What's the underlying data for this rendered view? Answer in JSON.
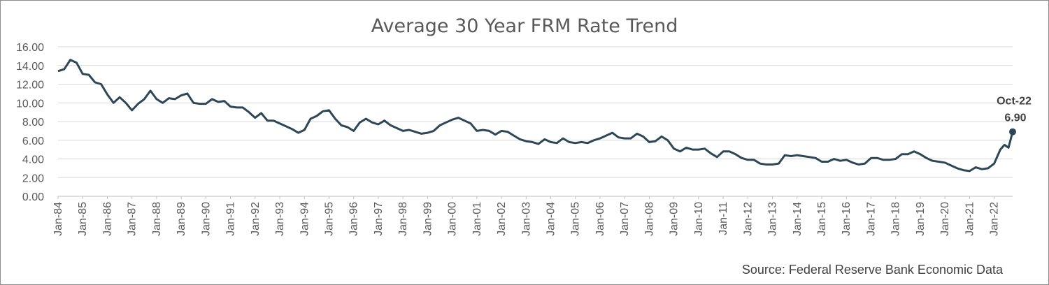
{
  "chart_data": {
    "type": "line",
    "title": "Average 30 Year FRM Rate Trend",
    "xlabel": "",
    "ylabel": "",
    "ylim": [
      0,
      16
    ],
    "y_ticks": [
      "0.00",
      "2.00",
      "4.00",
      "6.00",
      "8.00",
      "10.00",
      "12.00",
      "14.00",
      "16.00"
    ],
    "x_ticks": [
      "Jan-84",
      "Jan-85",
      "Jan-86",
      "Jan-87",
      "Jan-88",
      "Jan-89",
      "Jan-90",
      "Jan-91",
      "Jan-92",
      "Jan-93",
      "Jan-94",
      "Jan-95",
      "Jan-96",
      "Jan-97",
      "Jan-98",
      "Jan-99",
      "Jan-00",
      "Jan-01",
      "Jan-02",
      "Jan-03",
      "Jan-04",
      "Jan-05",
      "Jan-06",
      "Jan-07",
      "Jan-08",
      "Jan-09",
      "Jan-10",
      "Jan-11",
      "Jan-12",
      "Jan-13",
      "Jan-14",
      "Jan-15",
      "Jan-16",
      "Jan-17",
      "Jan-18",
      "Jan-19",
      "Jan-20",
      "Jan-21",
      "Jan-22"
    ],
    "grid": true,
    "series": [
      {
        "color": "#2e4756",
        "points": [
          [
            "Jan-84",
            13.4
          ],
          [
            "Apr-84",
            13.6
          ],
          [
            "Jul-84",
            14.6
          ],
          [
            "Oct-84",
            14.3
          ],
          [
            "Jan-85",
            13.1
          ],
          [
            "Apr-85",
            13.0
          ],
          [
            "Jul-85",
            12.2
          ],
          [
            "Oct-85",
            12.0
          ],
          [
            "Jan-86",
            10.9
          ],
          [
            "Apr-86",
            10.0
          ],
          [
            "Jul-86",
            10.6
          ],
          [
            "Oct-86",
            10.0
          ],
          [
            "Jan-87",
            9.2
          ],
          [
            "Apr-87",
            9.9
          ],
          [
            "Jul-87",
            10.4
          ],
          [
            "Oct-87",
            11.3
          ],
          [
            "Jan-88",
            10.4
          ],
          [
            "Apr-88",
            10.0
          ],
          [
            "Jul-88",
            10.5
          ],
          [
            "Oct-88",
            10.4
          ],
          [
            "Jan-89",
            10.8
          ],
          [
            "Apr-89",
            11.0
          ],
          [
            "Jul-89",
            10.0
          ],
          [
            "Oct-89",
            9.9
          ],
          [
            "Jan-90",
            9.9
          ],
          [
            "Apr-90",
            10.4
          ],
          [
            "Jul-90",
            10.1
          ],
          [
            "Oct-90",
            10.2
          ],
          [
            "Jan-91",
            9.6
          ],
          [
            "Apr-91",
            9.5
          ],
          [
            "Jul-91",
            9.5
          ],
          [
            "Oct-91",
            9.0
          ],
          [
            "Jan-92",
            8.4
          ],
          [
            "Apr-92",
            8.9
          ],
          [
            "Jul-92",
            8.1
          ],
          [
            "Oct-92",
            8.1
          ],
          [
            "Jan-93",
            7.8
          ],
          [
            "Apr-93",
            7.5
          ],
          [
            "Jul-93",
            7.2
          ],
          [
            "Oct-93",
            6.8
          ],
          [
            "Jan-94",
            7.1
          ],
          [
            "Apr-94",
            8.3
          ],
          [
            "Jul-94",
            8.6
          ],
          [
            "Oct-94",
            9.1
          ],
          [
            "Jan-95",
            9.2
          ],
          [
            "Apr-95",
            8.3
          ],
          [
            "Jul-95",
            7.6
          ],
          [
            "Oct-95",
            7.4
          ],
          [
            "Jan-96",
            7.0
          ],
          [
            "Apr-96",
            7.9
          ],
          [
            "Jul-96",
            8.3
          ],
          [
            "Oct-96",
            7.9
          ],
          [
            "Jan-97",
            7.7
          ],
          [
            "Apr-97",
            8.1
          ],
          [
            "Jul-97",
            7.6
          ],
          [
            "Oct-97",
            7.3
          ],
          [
            "Jan-98",
            7.0
          ],
          [
            "Apr-98",
            7.1
          ],
          [
            "Jul-98",
            6.9
          ],
          [
            "Oct-98",
            6.7
          ],
          [
            "Jan-99",
            6.8
          ],
          [
            "Apr-99",
            7.0
          ],
          [
            "Jul-99",
            7.6
          ],
          [
            "Oct-99",
            7.9
          ],
          [
            "Jan-00",
            8.2
          ],
          [
            "Apr-00",
            8.4
          ],
          [
            "Jul-00",
            8.1
          ],
          [
            "Oct-00",
            7.8
          ],
          [
            "Jan-01",
            7.0
          ],
          [
            "Apr-01",
            7.1
          ],
          [
            "Jul-01",
            7.0
          ],
          [
            "Oct-01",
            6.6
          ],
          [
            "Jan-02",
            7.0
          ],
          [
            "Apr-02",
            6.9
          ],
          [
            "Jul-02",
            6.5
          ],
          [
            "Oct-02",
            6.1
          ],
          [
            "Jan-03",
            5.9
          ],
          [
            "Apr-03",
            5.8
          ],
          [
            "Jul-03",
            5.6
          ],
          [
            "Oct-03",
            6.1
          ],
          [
            "Jan-04",
            5.8
          ],
          [
            "Apr-04",
            5.7
          ],
          [
            "Jul-04",
            6.2
          ],
          [
            "Oct-04",
            5.8
          ],
          [
            "Jan-05",
            5.7
          ],
          [
            "Apr-05",
            5.8
          ],
          [
            "Jul-05",
            5.7
          ],
          [
            "Oct-05",
            6.0
          ],
          [
            "Jan-06",
            6.2
          ],
          [
            "Apr-06",
            6.5
          ],
          [
            "Jul-06",
            6.8
          ],
          [
            "Oct-06",
            6.3
          ],
          [
            "Jan-07",
            6.2
          ],
          [
            "Apr-07",
            6.2
          ],
          [
            "Jul-07",
            6.7
          ],
          [
            "Oct-07",
            6.4
          ],
          [
            "Jan-08",
            5.8
          ],
          [
            "Apr-08",
            5.9
          ],
          [
            "Jul-08",
            6.4
          ],
          [
            "Oct-08",
            6.0
          ],
          [
            "Jan-09",
            5.1
          ],
          [
            "Apr-09",
            4.8
          ],
          [
            "Jul-09",
            5.2
          ],
          [
            "Oct-09",
            5.0
          ],
          [
            "Jan-10",
            5.0
          ],
          [
            "Apr-10",
            5.1
          ],
          [
            "Jul-10",
            4.6
          ],
          [
            "Oct-10",
            4.2
          ],
          [
            "Jan-11",
            4.8
          ],
          [
            "Apr-11",
            4.8
          ],
          [
            "Jul-11",
            4.5
          ],
          [
            "Oct-11",
            4.1
          ],
          [
            "Jan-12",
            3.9
          ],
          [
            "Apr-12",
            3.9
          ],
          [
            "Jul-12",
            3.5
          ],
          [
            "Oct-12",
            3.4
          ],
          [
            "Jan-13",
            3.4
          ],
          [
            "Apr-13",
            3.5
          ],
          [
            "Jul-13",
            4.4
          ],
          [
            "Oct-13",
            4.3
          ],
          [
            "Jan-14",
            4.4
          ],
          [
            "Apr-14",
            4.3
          ],
          [
            "Jul-14",
            4.2
          ],
          [
            "Oct-14",
            4.1
          ],
          [
            "Jan-15",
            3.7
          ],
          [
            "Apr-15",
            3.7
          ],
          [
            "Jul-15",
            4.0
          ],
          [
            "Oct-15",
            3.8
          ],
          [
            "Jan-16",
            3.9
          ],
          [
            "Apr-16",
            3.6
          ],
          [
            "Jul-16",
            3.4
          ],
          [
            "Oct-16",
            3.5
          ],
          [
            "Jan-17",
            4.1
          ],
          [
            "Apr-17",
            4.1
          ],
          [
            "Jul-17",
            3.9
          ],
          [
            "Oct-17",
            3.9
          ],
          [
            "Jan-18",
            4.0
          ],
          [
            "Apr-18",
            4.5
          ],
          [
            "Jul-18",
            4.5
          ],
          [
            "Oct-18",
            4.8
          ],
          [
            "Jan-19",
            4.5
          ],
          [
            "Apr-19",
            4.1
          ],
          [
            "Jul-19",
            3.8
          ],
          [
            "Oct-19",
            3.7
          ],
          [
            "Jan-20",
            3.6
          ],
          [
            "Apr-20",
            3.3
          ],
          [
            "Jul-20",
            3.0
          ],
          [
            "Oct-20",
            2.8
          ],
          [
            "Jan-21",
            2.7
          ],
          [
            "Apr-21",
            3.1
          ],
          [
            "Jul-21",
            2.9
          ],
          [
            "Oct-21",
            3.0
          ],
          [
            "Jan-22",
            3.5
          ],
          [
            "Apr-22",
            5.0
          ],
          [
            "Jun-22",
            5.5
          ],
          [
            "Aug-22",
            5.2
          ],
          [
            "Oct-22",
            6.9
          ]
        ]
      }
    ],
    "annotation": {
      "label": "Oct-22",
      "value": "6.90",
      "x": "Oct-22",
      "y": 6.9
    }
  },
  "source_text": "Source: Federal Reserve Bank Economic Data"
}
